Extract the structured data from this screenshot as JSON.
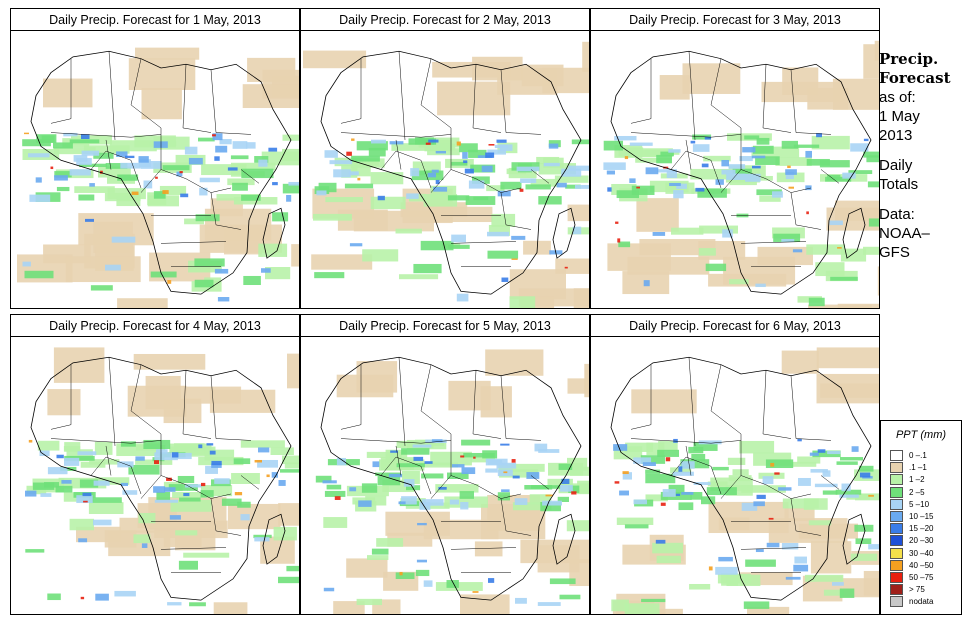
{
  "panels": [
    {
      "title": "Daily Precip. Forecast for  1 May, 2013"
    },
    {
      "title": "Daily Precip. Forecast for  2 May, 2013"
    },
    {
      "title": "Daily Precip. Forecast for  3 May, 2013"
    },
    {
      "title": "Daily Precip. Forecast for  4 May, 2013"
    },
    {
      "title": "Daily Precip. Forecast for  5 May, 2013"
    },
    {
      "title": "Daily Precip. Forecast for  6 May, 2013"
    }
  ],
  "sidebar": {
    "title_line1": "Precip.",
    "title_line2": "Forecast",
    "asof_label": "as of:",
    "asof_date_line1": "1 May",
    "asof_date_line2": "2013",
    "totals_line1": "Daily",
    "totals_line2": "Totals",
    "data_line1": "Data:",
    "data_line2": "NOAA–",
    "data_line3": "GFS"
  },
  "legend": {
    "title": "PPT (mm)",
    "items": [
      {
        "label": "0 –.1",
        "color": "#ffffff"
      },
      {
        "label": ".1 –1",
        "color": "#e8d3b0"
      },
      {
        "label": "1 –2",
        "color": "#b8f2a8"
      },
      {
        "label": "2 –5",
        "color": "#6fe07a"
      },
      {
        "label": "5 –10",
        "color": "#a8d4f5"
      },
      {
        "label": "10 –15",
        "color": "#6aaaf0"
      },
      {
        "label": "15 –20",
        "color": "#3a7de8"
      },
      {
        "label": "20 –30",
        "color": "#1e50d8"
      },
      {
        "label": "30 –40",
        "color": "#f5e04a"
      },
      {
        "label": "40 –50",
        "color": "#f5a020"
      },
      {
        "label": "50 –75",
        "color": "#e82010"
      },
      {
        "label": "> 75",
        "color": "#a0201a"
      },
      {
        "label": "nodata",
        "color": "#c8c8c8"
      }
    ]
  }
}
